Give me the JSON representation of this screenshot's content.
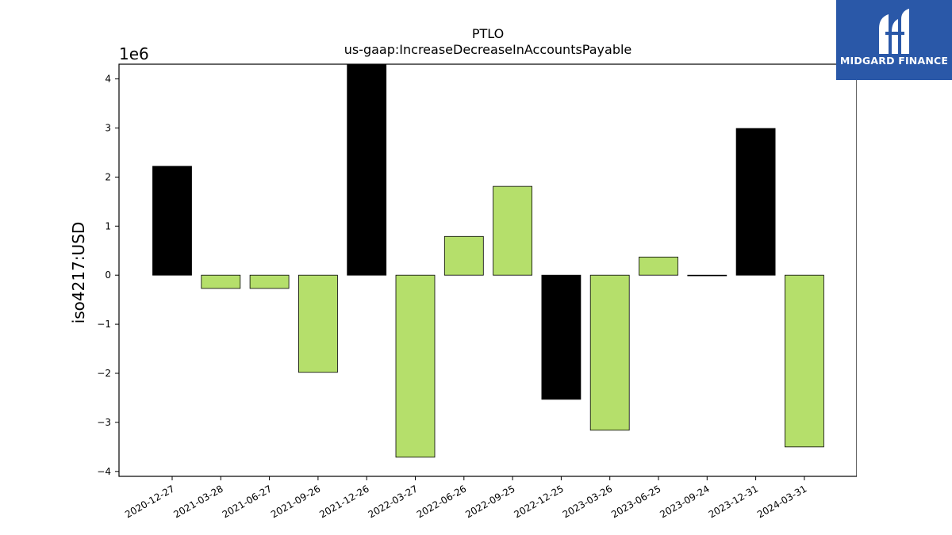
{
  "logo": {
    "text": "MIDGARD FINANCE",
    "background": "#2a58a8",
    "icon": "midgard-mark-icon"
  },
  "chart_data": {
    "type": "bar",
    "title": "PTLO",
    "subtitle": "us-gaap:IncreaseDecreaseInAccountsPayable",
    "ylabel": "iso4217:USD",
    "xlabel": "",
    "offset_label": "1e6",
    "ylim": [
      -4.1,
      4.3
    ],
    "yticks": [
      -4,
      -3,
      -2,
      -1,
      0,
      1,
      2,
      3,
      4
    ],
    "ytick_labels": [
      "−4",
      "−3",
      "−2",
      "−1",
      "0",
      "1",
      "2",
      "3",
      "4"
    ],
    "grid": false,
    "categories": [
      "2020-12-27",
      "2021-03-28",
      "2021-06-27",
      "2021-09-26",
      "2021-12-26",
      "2022-03-27",
      "2022-06-26",
      "2022-09-25",
      "2022-12-25",
      "2023-03-26",
      "2023-06-25",
      "2023-09-24",
      "2023-12-31",
      "2024-03-31"
    ],
    "values": [
      2.22,
      -0.27,
      -0.27,
      -1.98,
      4.3,
      -3.71,
      0.79,
      1.81,
      -2.53,
      -3.16,
      0.37,
      0.0,
      2.99,
      -3.5
    ],
    "highlight": [
      true,
      false,
      false,
      false,
      true,
      false,
      false,
      false,
      true,
      false,
      false,
      false,
      true,
      false
    ],
    "colors": {
      "highlight": "#000000",
      "normal": "#b5df6b",
      "edge": "#000000"
    }
  }
}
